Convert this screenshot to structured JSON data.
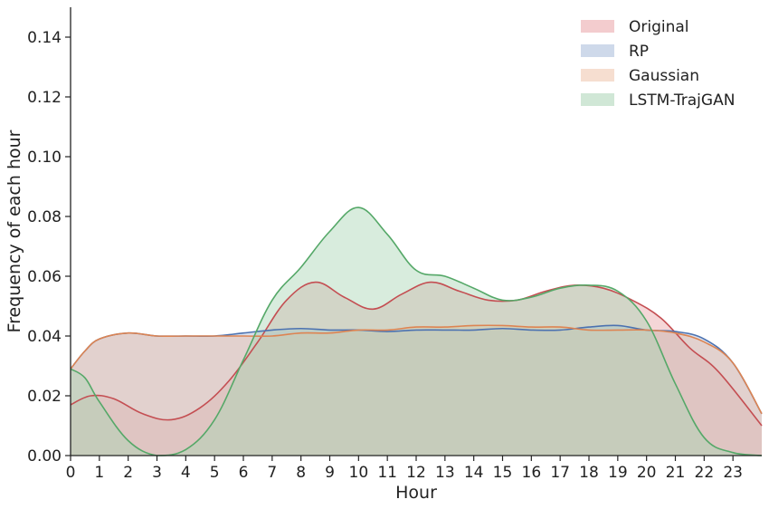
{
  "chart_data": {
    "type": "area",
    "title": "",
    "xlabel": "Hour",
    "ylabel": "Frequency of each hour",
    "xlim": [
      0,
      24
    ],
    "ylim": [
      0,
      0.15
    ],
    "x_ticks": [
      "0",
      "1",
      "2",
      "3",
      "4",
      "5",
      "6",
      "7",
      "8",
      "9",
      "10",
      "11",
      "12",
      "13",
      "14",
      "15",
      "16",
      "17",
      "18",
      "19",
      "20",
      "21",
      "22",
      "23"
    ],
    "y_ticks": [
      "0.00",
      "0.02",
      "0.04",
      "0.06",
      "0.08",
      "0.10",
      "0.12",
      "0.14"
    ],
    "y_tick_values": [
      0,
      0.02,
      0.04,
      0.06,
      0.08,
      0.1,
      0.12,
      0.14
    ],
    "grid": false,
    "legend_position": "top-right",
    "series": [
      {
        "name": "Original",
        "color": "#c44e52",
        "fill": "#e9a3a6",
        "x": [
          0,
          0.7,
          1.5,
          2.5,
          3.5,
          4.5,
          5.5,
          6.5,
          7.5,
          8.5,
          9.5,
          10.5,
          11.5,
          12.5,
          13.5,
          14.5,
          15.5,
          16.5,
          17.5,
          18.5,
          19.5,
          20.5,
          21.5,
          22.5,
          24
        ],
        "y": [
          0.017,
          0.02,
          0.019,
          0.014,
          0.012,
          0.016,
          0.025,
          0.038,
          0.052,
          0.058,
          0.053,
          0.049,
          0.054,
          0.058,
          0.055,
          0.052,
          0.052,
          0.055,
          0.057,
          0.056,
          0.052,
          0.046,
          0.036,
          0.028,
          0.01
        ]
      },
      {
        "name": "RP",
        "color": "#4c72b0",
        "fill": "#a6b9d8",
        "x": [
          0,
          0.5,
          1,
          2,
          3,
          4,
          5,
          6,
          7,
          8,
          9,
          10,
          11,
          12,
          13,
          14,
          15,
          16,
          17,
          18,
          19,
          20,
          21,
          22,
          23,
          24
        ],
        "y": [
          0.029,
          0.035,
          0.039,
          0.041,
          0.04,
          0.04,
          0.04,
          0.041,
          0.042,
          0.0425,
          0.042,
          0.042,
          0.0415,
          0.042,
          0.042,
          0.042,
          0.0425,
          0.042,
          0.042,
          0.043,
          0.0435,
          0.042,
          0.0415,
          0.039,
          0.031,
          0.014
        ]
      },
      {
        "name": "Gaussian",
        "color": "#dd8452",
        "fill": "#efc2a9",
        "x": [
          0,
          0.5,
          1,
          2,
          3,
          4,
          5,
          6,
          7,
          8,
          9,
          10,
          11,
          12,
          13,
          14,
          15,
          16,
          17,
          18,
          19,
          20,
          21,
          22,
          23,
          24
        ],
        "y": [
          0.029,
          0.035,
          0.039,
          0.041,
          0.04,
          0.04,
          0.04,
          0.04,
          0.04,
          0.041,
          0.041,
          0.042,
          0.042,
          0.043,
          0.043,
          0.0435,
          0.0435,
          0.043,
          0.043,
          0.042,
          0.042,
          0.042,
          0.041,
          0.038,
          0.031,
          0.014
        ]
      },
      {
        "name": "LSTM-TrajGAN",
        "color": "#55a868",
        "fill": "#a9d4b4",
        "x": [
          0,
          0.5,
          1,
          2,
          3,
          4,
          5,
          6,
          7,
          8,
          9,
          10,
          11,
          12,
          13,
          14,
          15,
          16,
          17,
          18,
          19,
          20,
          21,
          22,
          23,
          24
        ],
        "y": [
          0.029,
          0.026,
          0.018,
          0.005,
          0.0,
          0.002,
          0.012,
          0.032,
          0.052,
          0.063,
          0.075,
          0.083,
          0.074,
          0.062,
          0.06,
          0.056,
          0.052,
          0.053,
          0.056,
          0.057,
          0.055,
          0.045,
          0.024,
          0.006,
          0.001,
          0.0
        ]
      }
    ]
  }
}
